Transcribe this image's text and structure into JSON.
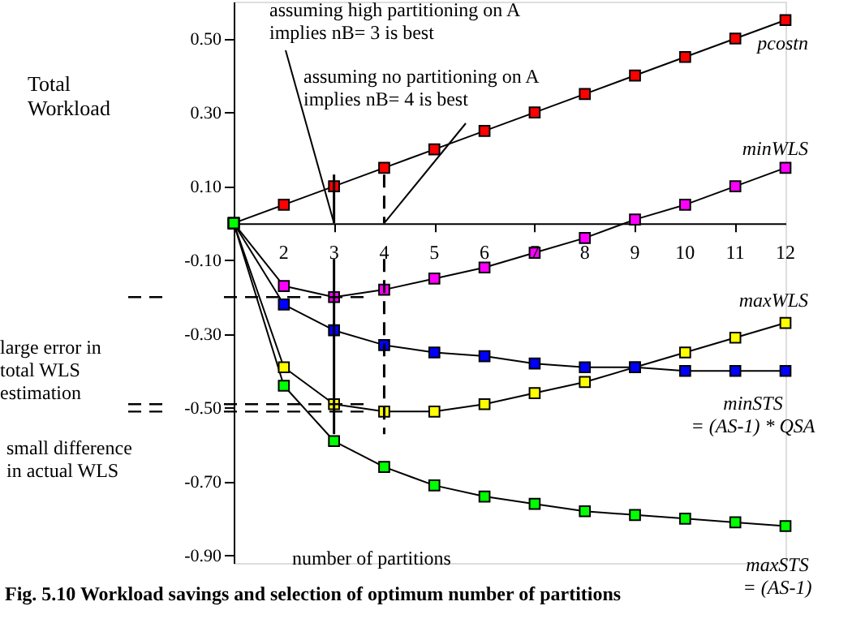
{
  "chart_data": {
    "type": "line",
    "title": "Fig. 5.10  Workload savings and selection of optimum number of partitions",
    "ylabel": "Total\nWorkload",
    "xlabel": "number of partitions",
    "x": [
      1,
      2,
      3,
      4,
      5,
      6,
      7,
      8,
      9,
      10,
      11,
      12
    ],
    "series": [
      {
        "name": "pcostn",
        "color": "#ff0000",
        "values": [
          0,
          0.05,
          0.1,
          0.15,
          0.2,
          0.25,
          0.3,
          0.35,
          0.4,
          0.45,
          0.5,
          0.55
        ]
      },
      {
        "name": "minWLS",
        "color": "#ff00ff",
        "values": [
          0,
          -0.17,
          -0.2,
          -0.18,
          -0.15,
          -0.12,
          -0.08,
          -0.04,
          0.01,
          0.05,
          0.1,
          0.15
        ]
      },
      {
        "name": "maxWLS",
        "color": "#ffff00",
        "values": [
          0,
          -0.39,
          -0.49,
          -0.51,
          -0.51,
          -0.49,
          -0.46,
          -0.43,
          -0.39,
          -0.35,
          -0.31,
          -0.27
        ]
      },
      {
        "name": "minSTS\n= (AS-1) * QSA",
        "color": "#0000ff",
        "values": [
          0,
          -0.22,
          -0.29,
          -0.33,
          -0.35,
          -0.36,
          -0.38,
          -0.39,
          -0.39,
          -0.4,
          -0.4,
          -0.4
        ]
      },
      {
        "name": "maxSTS\n= (AS-1)",
        "color": "#00ff00",
        "values": [
          0,
          -0.44,
          -0.59,
          -0.66,
          -0.71,
          -0.74,
          -0.76,
          -0.78,
          -0.79,
          -0.8,
          -0.81,
          -0.82
        ]
      }
    ],
    "xlim": [
      1,
      12
    ],
    "xticks": [
      {
        "value": 1,
        "label": null
      },
      2,
      3,
      4,
      5,
      6,
      7,
      8,
      9,
      10,
      11,
      12
    ],
    "ylim": [
      -0.92,
      0.6
    ],
    "yticks": [
      {
        "value": 0.5,
        "label": "0.50"
      },
      {
        "value": 0.3,
        "label": "0.30"
      },
      {
        "value": 0.1,
        "label": "0.10"
      },
      {
        "value": -0.1,
        "label": "-0.10"
      },
      {
        "value": -0.3,
        "label": "-0.30"
      },
      {
        "value": -0.5,
        "label": "-0.50"
      },
      {
        "value": -0.7,
        "label": "-0.70"
      },
      {
        "value": -0.9,
        "label": "-0.90"
      }
    ],
    "ref_lines": [
      {
        "axis": "x",
        "value": 3,
        "line_style": "solid"
      },
      {
        "axis": "x",
        "value": 4,
        "line_style": "dashed"
      },
      {
        "axis": "y",
        "value": -0.2,
        "line_style": "dashed"
      },
      {
        "axis": "y",
        "value": -0.49,
        "line_style": "dashed"
      },
      {
        "axis": "y",
        "value": -0.51,
        "line_style": "dashed"
      }
    ],
    "annotations": [
      {
        "text": "assuming high partitioning on A\nimplies nB= 3 is best",
        "x": 3,
        "y": 0
      },
      {
        "text": "assuming no partitioning on A\nimplies nB= 4 is best",
        "x": 4,
        "y": 0
      },
      "large error in\ntotal WLS\nestimation",
      "small difference\nin actual WLS"
    ],
    "marker": "square",
    "line_style": "solid",
    "grid": false
  }
}
